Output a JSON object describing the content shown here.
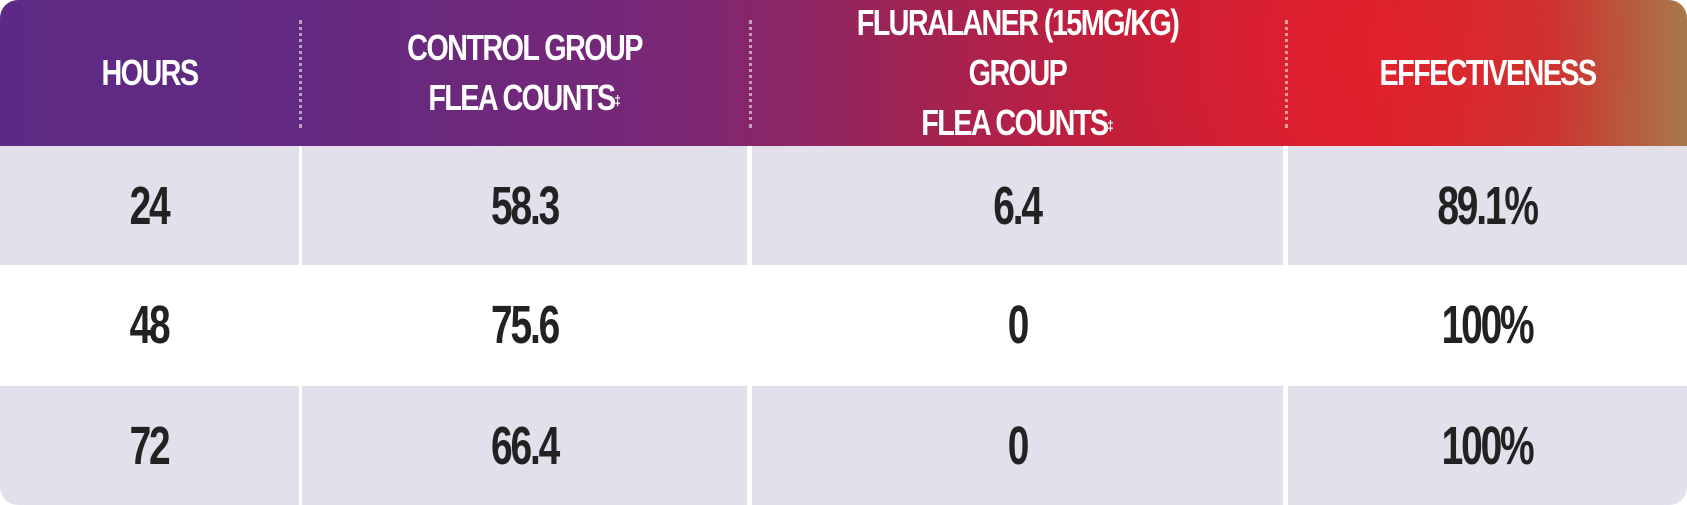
{
  "chart_data": {
    "type": "table",
    "columns": [
      {
        "lines": [
          "HOURS"
        ],
        "footnote": ""
      },
      {
        "lines": [
          "CONTROL GROUP",
          "FLEA COUNTS"
        ],
        "footnote": "‡"
      },
      {
        "lines": [
          "FLURALANER (15mg/kg) GROUP",
          "FLEA COUNTS"
        ],
        "footnote": "‡"
      },
      {
        "lines": [
          "EFFECTIVENESS"
        ],
        "footnote": ""
      }
    ],
    "rows": [
      [
        "24",
        "58.3",
        "6.4",
        "89.1%"
      ],
      [
        "48",
        "75.6",
        "0",
        "100%"
      ],
      [
        "72",
        "66.4",
        "0",
        "100%"
      ]
    ],
    "colors": {
      "header_start": "#5c2a85",
      "header_mid": "#dc1f2c",
      "header_end": "#a9784a",
      "row_shade": "#e3dfeb",
      "text": "#222222"
    }
  }
}
